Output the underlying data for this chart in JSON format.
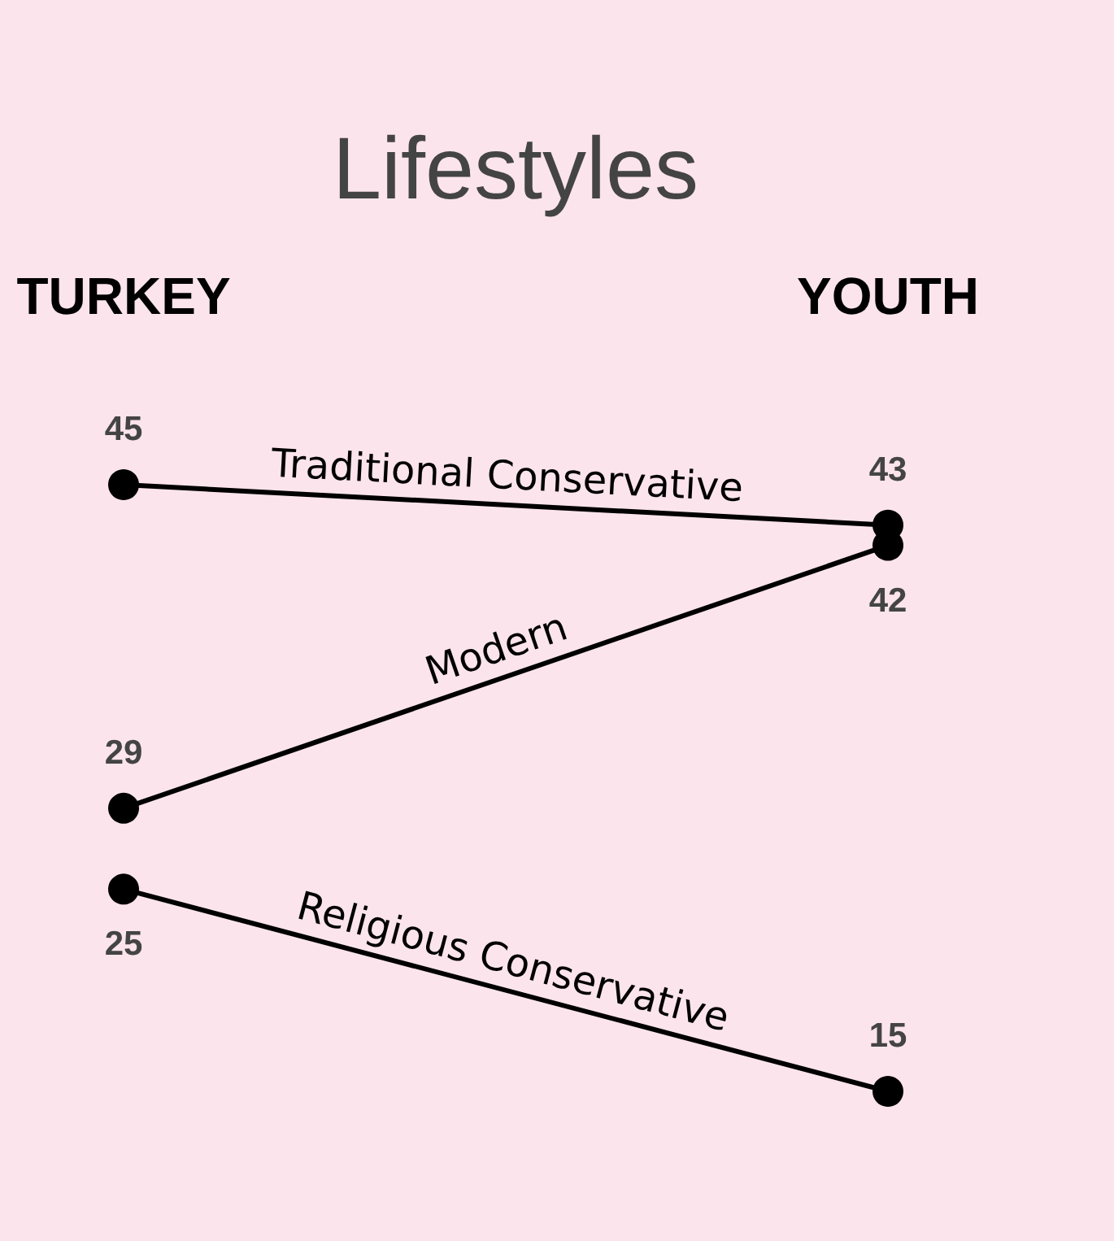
{
  "chart_data": {
    "type": "line",
    "title": "Lifestyles",
    "categories": [
      "TURKEY",
      "YOUTH"
    ],
    "series": [
      {
        "name": "Traditional Conservative",
        "color": "#000000",
        "values": [
          45,
          43
        ]
      },
      {
        "name": "Modern",
        "color": "#000000",
        "values": [
          29,
          42
        ]
      },
      {
        "name": "Religious Conservative",
        "color": "#000000",
        "values": [
          25,
          15
        ]
      }
    ],
    "data_labels": true,
    "marker": "circle",
    "line_style": "solid",
    "tick_labels": "x"
  }
}
